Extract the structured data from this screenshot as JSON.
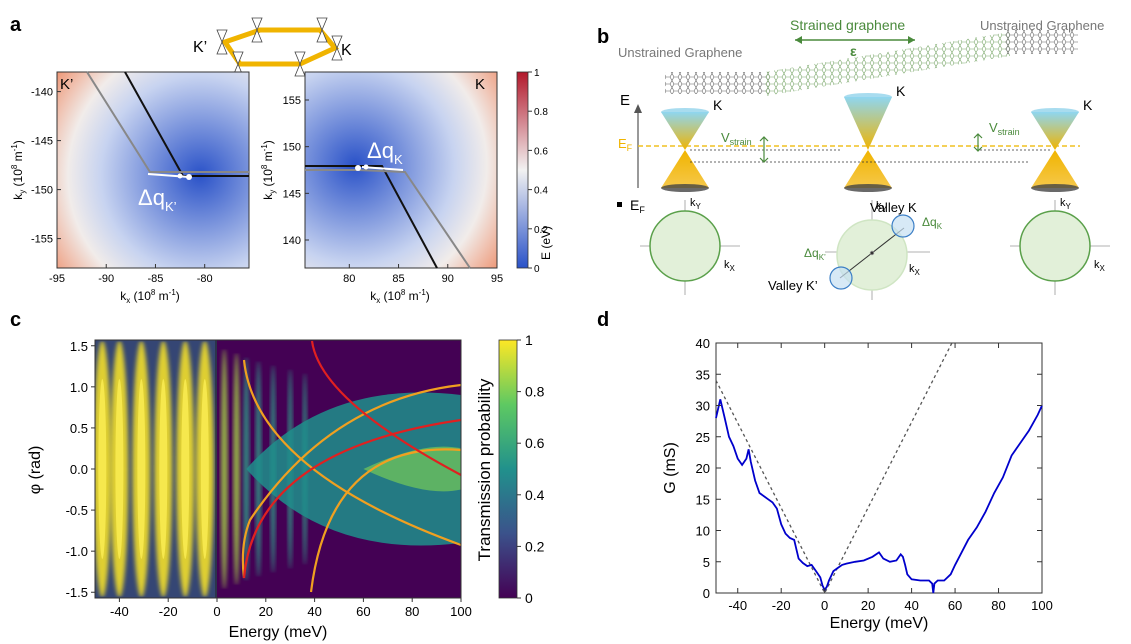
{
  "panel_letters": {
    "a": "a",
    "b": "b",
    "c": "c",
    "d": "d"
  },
  "panel_a": {
    "lattice_labels": {
      "left": "K’",
      "right": "K"
    },
    "left_map": {
      "corner_label": "K’",
      "xlabel": "k",
      "xlabel_sub": "x",
      "xlabel_unit": " (10",
      "xlabel_exp": "8",
      "xlabel_tail": " m",
      "xlabel_exp2": "-1",
      "xlabel_close": ")",
      "ylabel": "k",
      "ylabel_sub": "y",
      "ylabel_unit": " (10",
      "ylabel_exp": "8",
      "ylabel_tail": " m",
      "ylabel_exp2": "-1",
      "ylabel_close": ")",
      "xticks": [
        "-95",
        "-90",
        "-85",
        "-80"
      ],
      "yticks": [
        "-140",
        "-145",
        "-150",
        "-155"
      ],
      "xlim": [
        -95,
        -75.5
      ],
      "ylim": [
        -158,
        -138
      ],
      "dq_label": "Δq",
      "dq_sub": "K’"
    },
    "right_map": {
      "corner_label": "K",
      "xlabel": "k",
      "xlabel_sub": "x",
      "xlabel_unit": " (10",
      "xlabel_exp": "8",
      "xlabel_tail": " m",
      "xlabel_exp2": "-1",
      "xlabel_close": ")",
      "ylabel": "k",
      "ylabel_sub": "y",
      "ylabel_unit": " (10",
      "ylabel_exp": "8",
      "ylabel_tail": " m",
      "ylabel_exp2": "-1",
      "ylabel_close": ")",
      "xticks": [
        "80",
        "85",
        "90",
        "95"
      ],
      "yticks": [
        "155",
        "150",
        "145",
        "140"
      ],
      "xlim": [
        75.5,
        95
      ],
      "ylim": [
        137,
        158
      ],
      "dq_label": "Δq",
      "dq_sub": "K"
    },
    "colorbar": {
      "label": "E (eV)",
      "ticks": [
        "1",
        "0.8",
        "0.6",
        "0.4",
        "0.2",
        "0"
      ],
      "colors": {
        "low": "#2a52c8",
        "mid": "#f2f2f2",
        "high": "#b2182b"
      }
    }
  },
  "panel_b": {
    "strained": "Strained graphene",
    "epsilon": "ε",
    "unstrained_left": "Unstrained Graphene",
    "unstrained_right": "Unstrained Graphene",
    "energy_axis": "E",
    "fermi": "E",
    "fermi_sub": "F",
    "valley_labels": [
      "K",
      "K",
      "K"
    ],
    "vstrain": "V",
    "vstrain_sub": "strain",
    "fermi_bullet": "E",
    "fermi_bullet_sub": "F",
    "ky": "k",
    "ky_sub": "Y",
    "kx": "k",
    "kx_sub": "X",
    "valley_k": "Valley K",
    "valley_kp": "Valley K’",
    "dq_k": "Δq",
    "dq_k_sub": "K",
    "dq_kp": "Δq",
    "dq_kp_sub": "K’",
    "colors": {
      "green": "#4a8a3c",
      "gold": "#f0b400",
      "fermi": "#f0c020"
    }
  },
  "panel_c": {
    "chart_data": {
      "type": "heatmap",
      "xlabel": "Energy (meV)",
      "ylabel": "φ (rad)",
      "colorbar_label": "Transmission probability",
      "xticks": [
        -40,
        -20,
        0,
        20,
        40,
        60,
        80,
        100
      ],
      "yticks": [
        1.5,
        1.0,
        0.5,
        0.0,
        -0.5,
        -1.0,
        -1.5
      ],
      "ytick_labels": [
        "1.5",
        "1.0",
        "0.5",
        "0.0",
        "-0.5",
        "-1.0",
        "-1.5"
      ],
      "colorbar_ticks": [
        "1",
        "0.8",
        "0.6",
        "0.4",
        "0.2",
        "0"
      ],
      "xlim": [
        -50,
        100
      ],
      "ylim": [
        -1.57,
        1.57
      ],
      "colormap": [
        "#440154",
        "#3b528b",
        "#21918c",
        "#5ec962",
        "#fde725"
      ]
    }
  },
  "panel_d": {
    "chart_data": {
      "type": "line",
      "xlabel": "Energy (meV)",
      "ylabel": "G (mS)",
      "xlim": [
        -50,
        100
      ],
      "ylim": [
        0,
        40
      ],
      "xticks": [
        -40,
        -20,
        0,
        20,
        40,
        60,
        80,
        100
      ],
      "yticks": [
        0,
        5,
        10,
        15,
        20,
        25,
        30,
        35,
        40
      ],
      "series": [
        {
          "style": "solid",
          "color": "#0000cc",
          "x": [
            -50,
            -48,
            -46,
            -44,
            -42,
            -40,
            -38,
            -36,
            -35,
            -34,
            -32,
            -30,
            -28,
            -26,
            -24,
            -22,
            -20,
            -18,
            -16,
            -14,
            -13,
            -12,
            -10,
            -8,
            -6,
            -4,
            -2,
            -1,
            0,
            1,
            2,
            4,
            6,
            8,
            10,
            14,
            18,
            22,
            25,
            27,
            30,
            33,
            35,
            36,
            37,
            38,
            40,
            44,
            48,
            49.5,
            50,
            50.5,
            52,
            55,
            58,
            60,
            63,
            66,
            70,
            74,
            78,
            82,
            86,
            90,
            94,
            98,
            100
          ],
          "y": [
            28,
            31,
            28,
            25,
            23.5,
            21.5,
            20.5,
            21.5,
            23,
            21,
            18,
            16,
            15.5,
            15,
            14.5,
            13.5,
            11,
            9.5,
            8.8,
            8.5,
            7,
            5.5,
            4.8,
            4.3,
            4.5,
            3.5,
            2.5,
            1.2,
            0.5,
            1,
            2,
            3.5,
            4,
            4.5,
            4.7,
            5,
            5.2,
            5.8,
            6.5,
            5.5,
            5,
            5.2,
            6.2,
            5.8,
            4.5,
            3,
            2.2,
            2,
            2,
            1.5,
            0,
            1.5,
            2,
            2,
            3,
            4.5,
            6.5,
            8.5,
            10.5,
            13,
            16,
            18.5,
            22,
            24,
            26,
            28.5,
            30
          ]
        },
        {
          "style": "dashed",
          "color": "#555555",
          "x": [
            -50,
            0,
            60
          ],
          "y": [
            34,
            0,
            41
          ]
        }
      ]
    }
  }
}
